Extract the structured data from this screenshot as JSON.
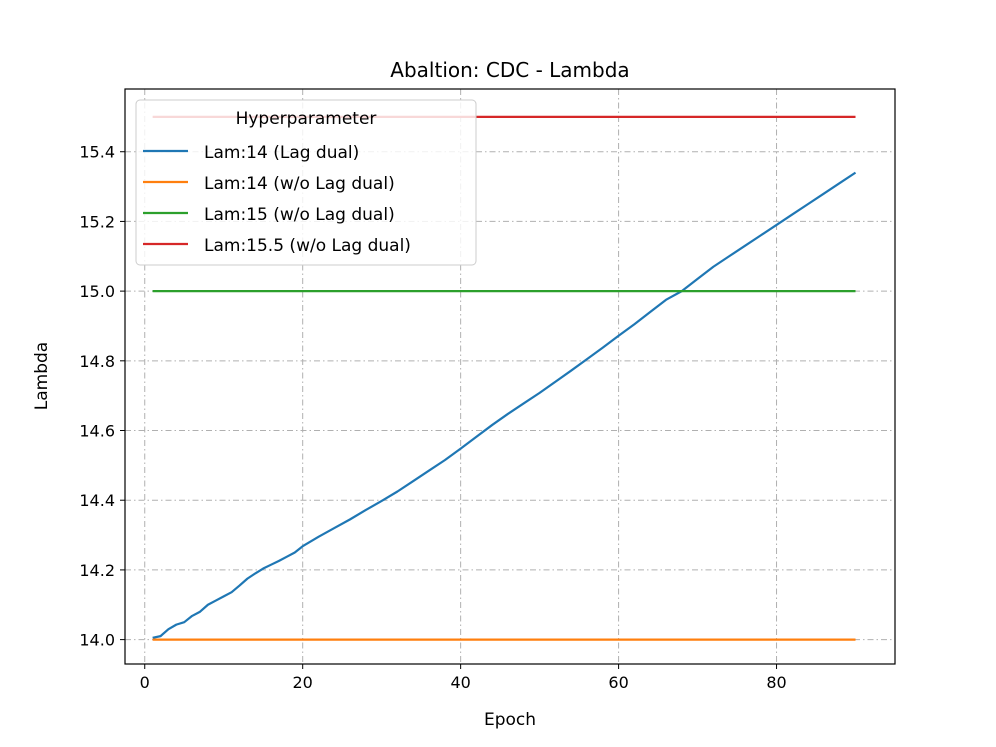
{
  "chart_data": {
    "type": "line",
    "title": "Abaltion: CDC - Lambda",
    "xlabel": "Epoch",
    "ylabel": "Lambda",
    "xlim": [
      -2.5,
      95
    ],
    "ylim": [
      13.93,
      15.58
    ],
    "xticks": [
      0,
      20,
      40,
      60,
      80
    ],
    "yticks": [
      14.0,
      14.2,
      14.4,
      14.6,
      14.8,
      15.0,
      15.2,
      15.4
    ],
    "xtick_labels": [
      "0",
      "20",
      "40",
      "60",
      "80"
    ],
    "ytick_labels": [
      "14.0",
      "14.2",
      "14.4",
      "14.6",
      "14.8",
      "15.0",
      "15.2",
      "15.4"
    ],
    "grid": true,
    "legend": {
      "title": "Hyperparameter",
      "placement": "upper-left"
    },
    "series": [
      {
        "name": "Lam:14 (Lag dual)",
        "color": "#1f77b4",
        "points": [
          [
            1,
            14.005
          ],
          [
            2,
            14.01
          ],
          [
            3,
            14.03
          ],
          [
            4,
            14.043
          ],
          [
            5,
            14.05
          ],
          [
            6,
            14.068
          ],
          [
            7,
            14.08
          ],
          [
            8,
            14.1
          ],
          [
            9,
            14.112
          ],
          [
            10,
            14.124
          ],
          [
            11,
            14.136
          ],
          [
            12,
            14.155
          ],
          [
            13,
            14.175
          ],
          [
            14,
            14.19
          ],
          [
            15,
            14.204
          ],
          [
            16,
            14.215
          ],
          [
            17,
            14.226
          ],
          [
            18,
            14.238
          ],
          [
            19,
            14.25
          ],
          [
            20,
            14.268
          ],
          [
            22,
            14.295
          ],
          [
            24,
            14.32
          ],
          [
            26,
            14.345
          ],
          [
            28,
            14.372
          ],
          [
            30,
            14.398
          ],
          [
            32,
            14.425
          ],
          [
            34,
            14.455
          ],
          [
            36,
            14.485
          ],
          [
            38,
            14.515
          ],
          [
            40,
            14.548
          ],
          [
            42,
            14.582
          ],
          [
            44,
            14.616
          ],
          [
            46,
            14.648
          ],
          [
            48,
            14.678
          ],
          [
            50,
            14.708
          ],
          [
            52,
            14.74
          ],
          [
            54,
            14.772
          ],
          [
            56,
            14.805
          ],
          [
            58,
            14.838
          ],
          [
            60,
            14.872
          ],
          [
            62,
            14.905
          ],
          [
            64,
            14.94
          ],
          [
            66,
            14.975
          ],
          [
            68,
            15.0
          ],
          [
            70,
            15.035
          ],
          [
            72,
            15.07
          ],
          [
            74,
            15.1
          ],
          [
            76,
            15.13
          ],
          [
            78,
            15.16
          ],
          [
            80,
            15.19
          ],
          [
            82,
            15.22
          ],
          [
            84,
            15.25
          ],
          [
            86,
            15.28
          ],
          [
            88,
            15.31
          ],
          [
            90,
            15.34
          ]
        ]
      },
      {
        "name": "Lam:14 (w/o Lag dual)",
        "color": "#ff7f0e",
        "points": [
          [
            1,
            14.0
          ],
          [
            90,
            14.0
          ]
        ]
      },
      {
        "name": "Lam:15 (w/o Lag dual)",
        "color": "#2ca02c",
        "points": [
          [
            1,
            15.0
          ],
          [
            90,
            15.0
          ]
        ]
      },
      {
        "name": "Lam:15.5 (w/o Lag dual)",
        "color": "#d62728",
        "points": [
          [
            1,
            15.5
          ],
          [
            90,
            15.5
          ]
        ]
      }
    ]
  }
}
